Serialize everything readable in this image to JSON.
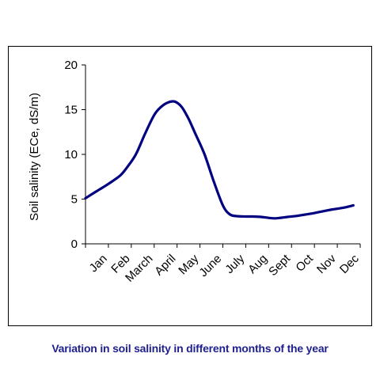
{
  "caption": "Variation in soil salinity in different months of the year",
  "chart_data": {
    "type": "line",
    "title": "",
    "xlabel": "",
    "ylabel": "Soil salinity (ECe, dS/m)",
    "categories": [
      "Jan",
      "Feb",
      "March",
      "April",
      "May",
      "June",
      "July",
      "Aug",
      "Sept",
      "Oct",
      "Nov",
      "Dec"
    ],
    "ylim": [
      0,
      20
    ],
    "yticks": [
      "0",
      "5",
      "10",
      "15",
      "20"
    ],
    "grid": false,
    "legend": "none",
    "line_color": "#000080",
    "series": [
      {
        "values": [
          5.1,
          5.9,
          6.7,
          7.6,
          8.5,
          10.0,
          12.3,
          14.4,
          15.3,
          15.8,
          15.9,
          15.3,
          14.0,
          12.3,
          10.0,
          7.0,
          4.3,
          3.3,
          3.1,
          3.05,
          3.05,
          3.0,
          2.9,
          2.85,
          3.0,
          3.15,
          3.35,
          3.6,
          3.85,
          4.05,
          4.3
        ],
        "x": [
          0,
          0.5,
          1,
          1.5,
          1.8,
          2.2,
          2.6,
          3.0,
          3.3,
          3.6,
          3.9,
          4.2,
          4.5,
          4.8,
          5.2,
          5.6,
          6.0,
          6.3,
          6.6,
          7.0,
          7.3,
          7.7,
          8.0,
          8.3,
          8.8,
          9.3,
          9.8,
          10.3,
          10.8,
          11.3,
          11.7
        ]
      }
    ]
  }
}
